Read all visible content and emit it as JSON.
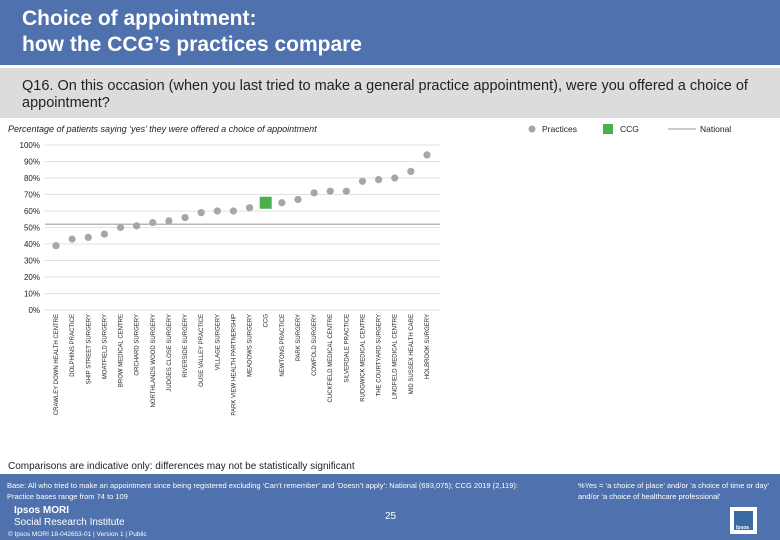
{
  "header": {
    "title_line1": "Choice of appointment:",
    "title_line2": "how the CCG’s practices compare"
  },
  "question": "Q16. On this occasion (when you last tried to make a general practice appointment), were you offered a choice of appointment?",
  "caveat": "Comparisons are indicative only: differences may not be statistically significant",
  "footer": {
    "base_note": "Base: All who tried to make an appointment since being registered excluding ‘Can’t remember’ and ‘Doesn’t apply’: National (693,075); CCG 2019 (2,119): Practice bases range from 74 to 109",
    "definition_note": "%Yes = ‘a choice of place’ and/or ‘a choice of time or day’ and/or ‘a choice of healthcare professional’",
    "logo_top": "Ipsos MORI",
    "logo_bottom": "Social Research Institute",
    "page_number": "25",
    "copyright": "© Ipsos MORI     18-042653-01 | Version 1 | Public",
    "logo_word": "Ipsos"
  },
  "chart_data": {
    "type": "scatter",
    "title": "Percentage of patients saying ‘yes’ they were offered a choice of appointment",
    "legend": {
      "practices": "Practices",
      "ccg": "CCG",
      "national": "National",
      "placement": "top-right"
    },
    "ylim": [
      0,
      100
    ],
    "ytick_labels": [
      "0%",
      "10%",
      "20%",
      "30%",
      "40%",
      "50%",
      "60%",
      "70%",
      "80%",
      "90%",
      "100%"
    ],
    "national_value": 52,
    "categories": [
      "CRAWLEY DOWN HEALTH CENTRE",
      "DOLPHINS PRACTICE",
      "SHIP STREET SURGERY",
      "MOATFIELD SURGERY",
      "BROW MEDICAL CENTRE",
      "ORCHARD SURGERY",
      "NORTHLANDS WOOD SURGERY",
      "JUDGES CLOSE SURGERY",
      "RIVERSIDE SURGERY",
      "OUSE VALLEY PRACTICE",
      "VILLAGE SURGERY",
      "PARK VIEW HEALTH PARTNERSHIP",
      "MEADOWS SURGERY",
      "CCG",
      "NEWTONS PRACTICE",
      "PARK SURGERY",
      "COWFOLD SURGERY",
      "CUCKFIELD MEDICAL CENTRE",
      "SILVERDALE PRACTICE",
      "RUDGWICK MEDICAL CENTRE",
      "THE COURTYARD SURGERY",
      "LINDFIELD MEDICAL CENTRE",
      "MID SUSSEX HEALTH CARE",
      "HOLBROOK SURGERY"
    ],
    "values": [
      39,
      43,
      44,
      46,
      50,
      51,
      53,
      54,
      56,
      59,
      60,
      60,
      62,
      65,
      65,
      67,
      71,
      72,
      72,
      78,
      79,
      80,
      84,
      94
    ],
    "highlight_category": "CCG",
    "colors": {
      "practice": "#a6a6a6",
      "ccg": "#4caf50",
      "national": "#b8b8b8",
      "grid": "#d9d9d9"
    }
  }
}
